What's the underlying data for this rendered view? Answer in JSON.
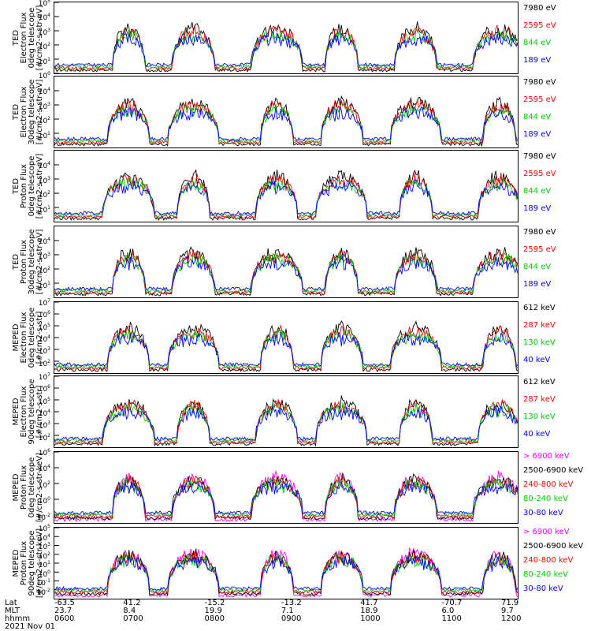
{
  "footer": {
    "row_labels": [
      "Lat",
      "MLT",
      "hhmm"
    ],
    "date": "2021 Nov 01",
    "ticks": [
      {
        "lat": "-63.5",
        "mlt": "23.7",
        "hhmm": "0600"
      },
      {
        "lat": "41.2",
        "mlt": "8.4",
        "hhmm": "0700"
      },
      {
        "lat": "-15.2",
        "mlt": "19.9",
        "hhmm": "0800"
      },
      {
        "lat": "-13.2",
        "mlt": "7.1",
        "hhmm": "0900"
      },
      {
        "lat": "41.7",
        "mlt": "18.9",
        "hhmm": "1000"
      },
      {
        "lat": "-70.7",
        "mlt": "6.0",
        "hhmm": "1100"
      },
      {
        "lat": "71.9",
        "mlt": "9.7",
        "hhmm": "1200"
      }
    ]
  },
  "chart_data": [
    {
      "type": "line",
      "ylabel": [
        "TED",
        "Electron Flux",
        "0deg telescope",
        "[#/cm2-s-str-eV]"
      ],
      "yscale": "log",
      "ylim_exp": [
        0,
        5
      ],
      "ytick_exps": [
        0,
        1,
        2,
        3,
        4,
        5
      ],
      "series": [
        {
          "name": "7980 eV",
          "color": "#000000"
        },
        {
          "name": "2595 eV",
          "color": "#ff0000"
        },
        {
          "name": "844 eV",
          "color": "#00cc00"
        },
        {
          "name": "189 eV",
          "color": "#0000ff"
        }
      ]
    },
    {
      "type": "line",
      "ylabel": [
        "TED",
        "Electron Flux",
        "30deg telescope",
        "[#/cm2-s-str-eV]"
      ],
      "yscale": "log",
      "ylim_exp": [
        0,
        5
      ],
      "ytick_exps": [
        1,
        2,
        3,
        4
      ],
      "series": [
        {
          "name": "7980 eV",
          "color": "#000000"
        },
        {
          "name": "2595 eV",
          "color": "#ff0000"
        },
        {
          "name": "844 eV",
          "color": "#00cc00"
        },
        {
          "name": "189 eV",
          "color": "#0000ff"
        }
      ]
    },
    {
      "type": "line",
      "ylabel": [
        "TED",
        "Proton Flux",
        "0deg telescope",
        "[#/cm2-s-str-eV]"
      ],
      "yscale": "log",
      "ylim_exp": [
        0,
        5
      ],
      "ytick_exps": [
        1,
        2,
        3,
        4
      ],
      "series": [
        {
          "name": "7980 eV",
          "color": "#000000"
        },
        {
          "name": "2595 eV",
          "color": "#ff0000"
        },
        {
          "name": "844 eV",
          "color": "#00cc00"
        },
        {
          "name": "189 eV",
          "color": "#0000ff"
        }
      ]
    },
    {
      "type": "line",
      "ylabel": [
        "TED",
        "Proton Flux",
        "30deg telescope",
        "[#/cm2-s-str-eV]"
      ],
      "yscale": "log",
      "ylim_exp": [
        0,
        5
      ],
      "ytick_exps": [
        1,
        2,
        3,
        4
      ],
      "series": [
        {
          "name": "7980 eV",
          "color": "#000000"
        },
        {
          "name": "2595 eV",
          "color": "#ff0000"
        },
        {
          "name": "844 eV",
          "color": "#00cc00"
        },
        {
          "name": "189 eV",
          "color": "#0000ff"
        }
      ]
    },
    {
      "type": "line",
      "ylabel": [
        "MEPED",
        "Electron Flux",
        "0deg telescope",
        "[#/cm2-s-str]"
      ],
      "yscale": "log",
      "ylim_exp": [
        1,
        7
      ],
      "ytick_exps": [
        2,
        3,
        4,
        5,
        6,
        7
      ],
      "series": [
        {
          "name": "612 keV",
          "color": "#000000"
        },
        {
          "name": "287 keV",
          "color": "#ff0000"
        },
        {
          "name": "130 keV",
          "color": "#00cc00"
        },
        {
          "name": "40 keV",
          "color": "#0000ff"
        }
      ]
    },
    {
      "type": "line",
      "ylabel": [
        "MEPED",
        "Electron Flux",
        "90deg telescope",
        "[#/cm2-s-str]"
      ],
      "yscale": "log",
      "ylim_exp": [
        1,
        7
      ],
      "ytick_exps": [
        2,
        3,
        4,
        5,
        6,
        7
      ],
      "series": [
        {
          "name": "612 keV",
          "color": "#000000"
        },
        {
          "name": "287 keV",
          "color": "#ff0000"
        },
        {
          "name": "130 keV",
          "color": "#00cc00"
        },
        {
          "name": "40 keV",
          "color": "#0000ff"
        }
      ]
    },
    {
      "type": "line",
      "ylabel": [
        "MEPED",
        "Proton Flux",
        "0deg telescope",
        "[#/cm2-s-str-keV]"
      ],
      "yscale": "log",
      "ylim_exp": [
        -3,
        6
      ],
      "ytick_exps": [
        -2,
        0,
        2,
        4,
        6
      ],
      "series": [
        {
          "name": "> 6900 keV",
          "color": "#ff00ff"
        },
        {
          "name": "2500-6900 keV",
          "color": "#000000"
        },
        {
          "name": "240-800 keV",
          "color": "#ff0000"
        },
        {
          "name": "80-240 keV",
          "color": "#00cc00"
        },
        {
          "name": "30-80 keV",
          "color": "#0000ff"
        }
      ]
    },
    {
      "type": "line",
      "ylabel": [
        "MEPED",
        "Proton Flux",
        "90deg telescope",
        "[#/cm2-s-str-keV]"
      ],
      "yscale": "log",
      "ylim_exp": [
        -3,
        5
      ],
      "ytick_exps": [
        -2,
        -1,
        0,
        1,
        2,
        3,
        4,
        5
      ],
      "series": [
        {
          "name": "> 6900 keV",
          "color": "#ff00ff"
        },
        {
          "name": "2500-6900 keV",
          "color": "#000000"
        },
        {
          "name": "240-800 keV",
          "color": "#ff0000"
        },
        {
          "name": "80-240 keV",
          "color": "#00cc00"
        },
        {
          "name": "30-80 keV",
          "color": "#0000ff"
        }
      ]
    }
  ]
}
